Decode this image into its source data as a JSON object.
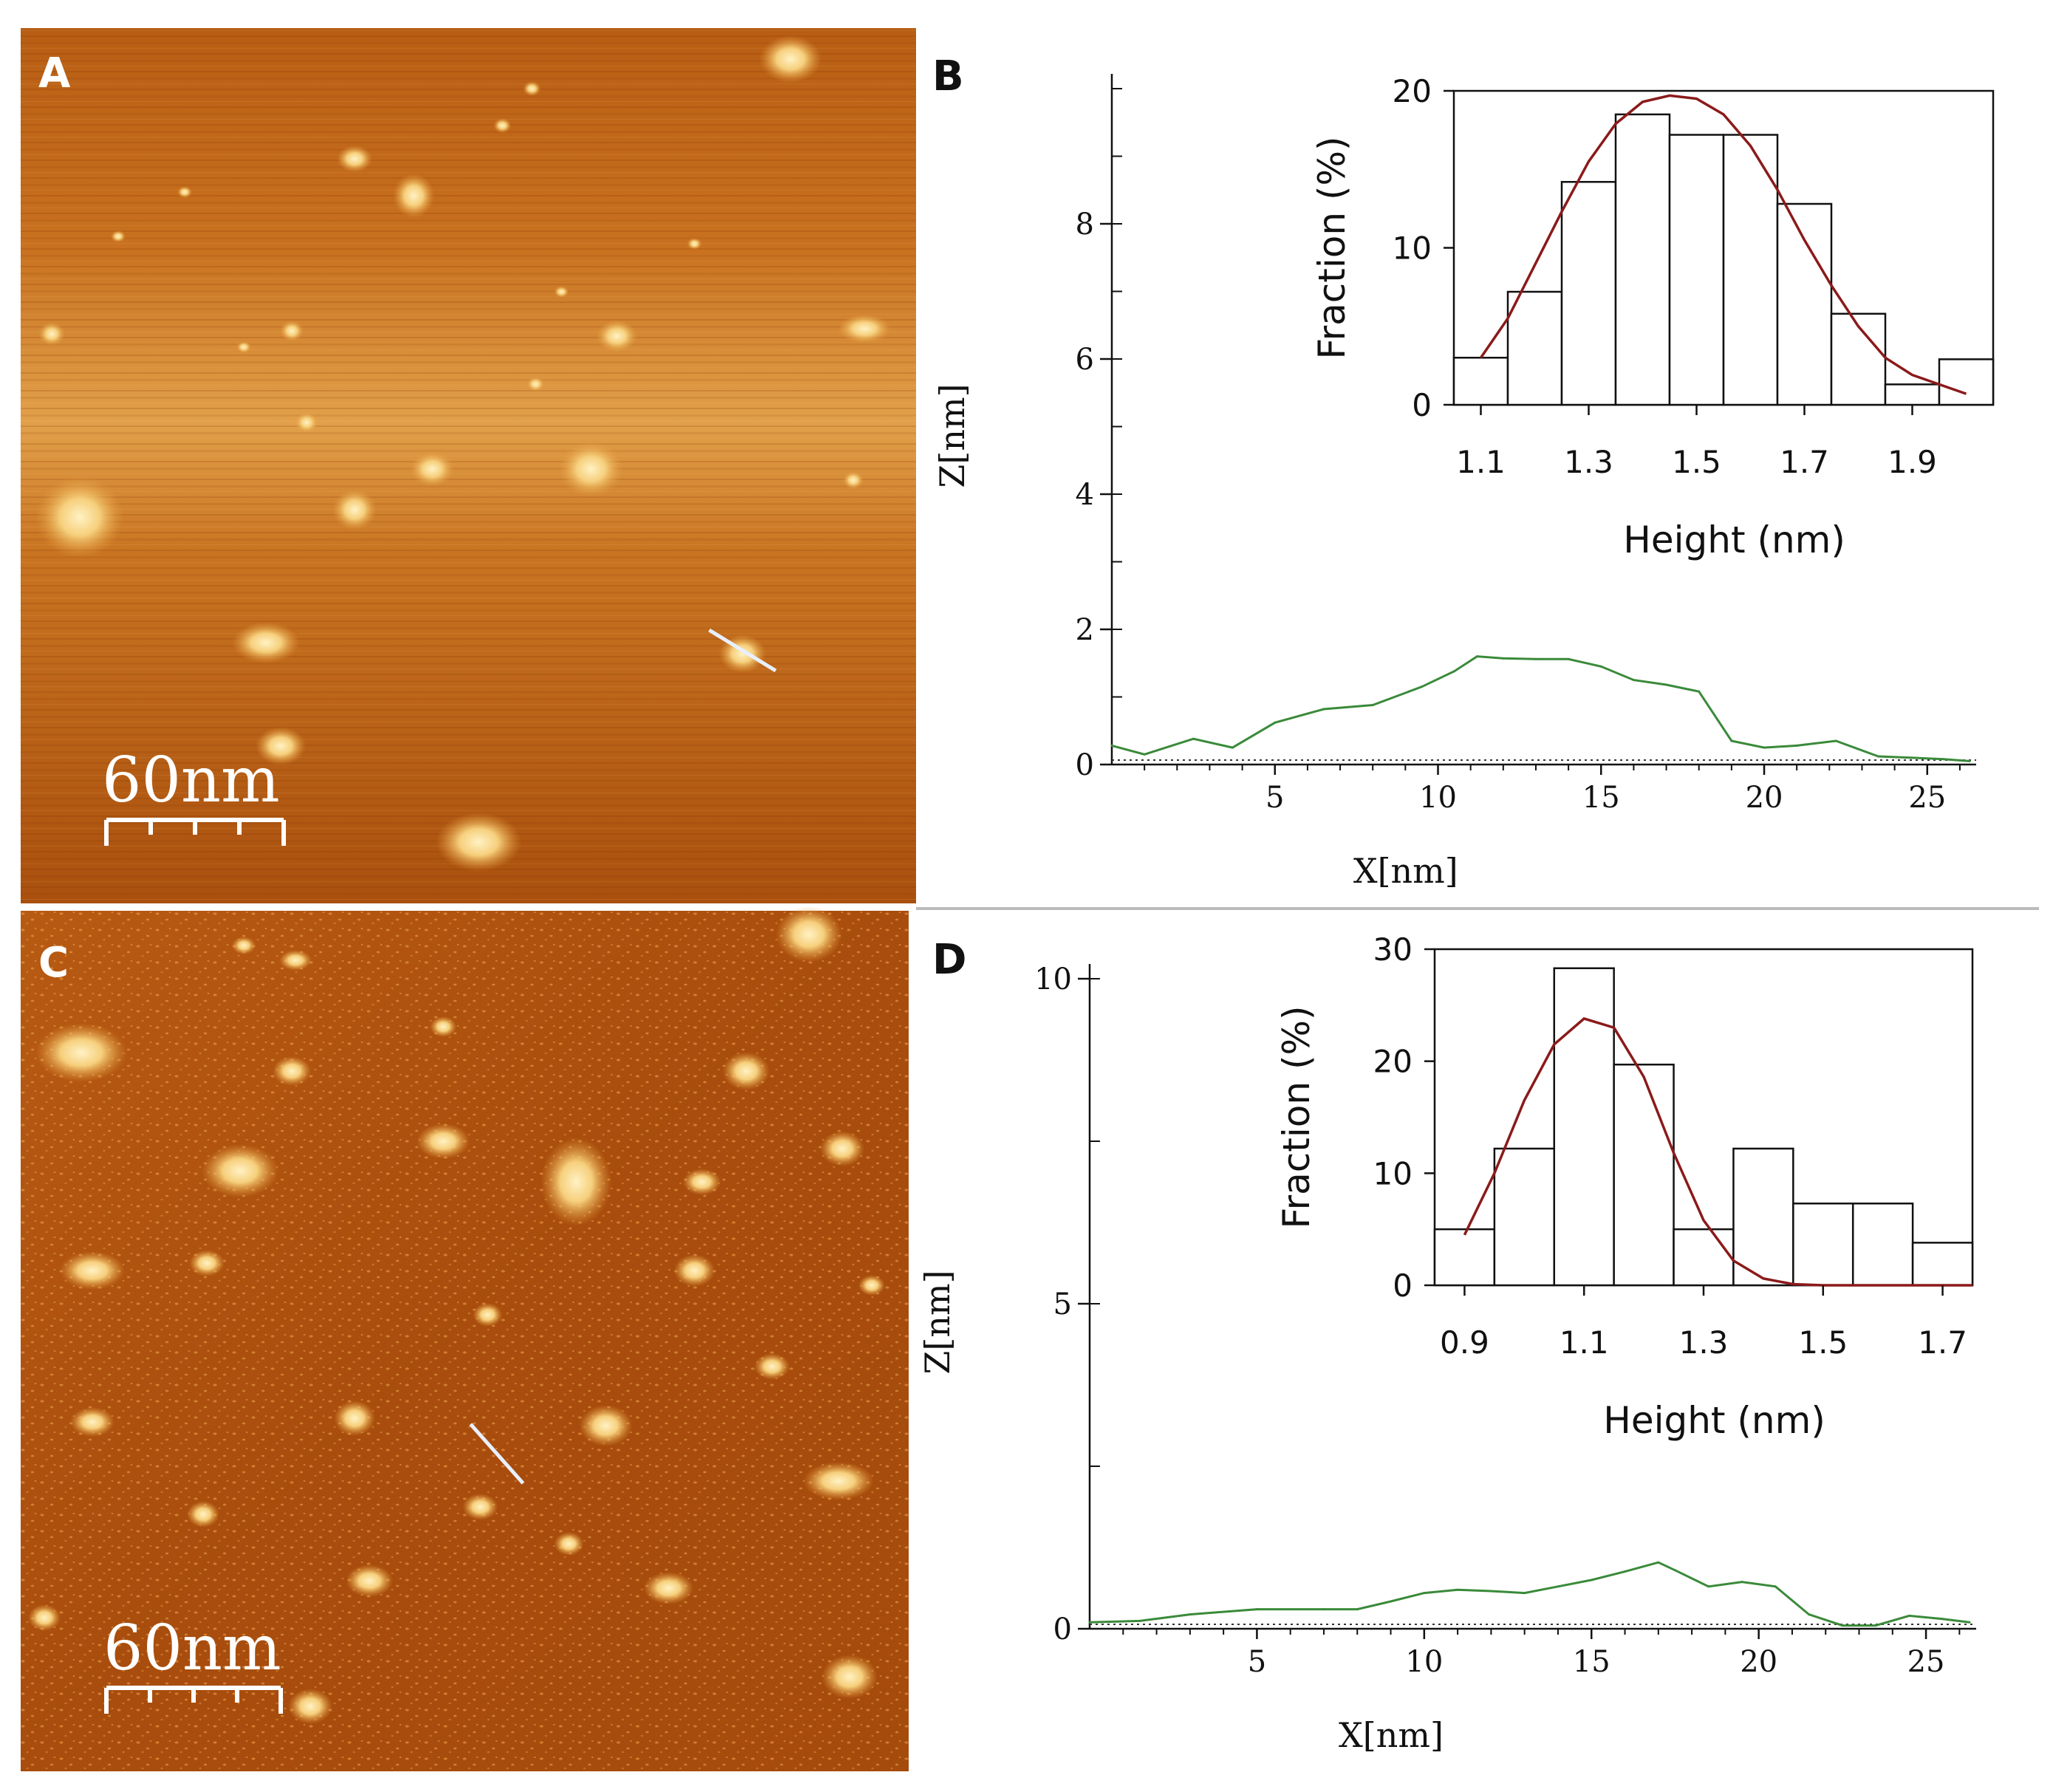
{
  "figure": {
    "panels": [
      {
        "label": "A",
        "type": "afm-image",
        "scale_bar": "60nm",
        "scale_bar_ticks": 4
      },
      {
        "label": "B"
      },
      {
        "label": "C",
        "type": "afm-image",
        "scale_bar": "60nm",
        "scale_bar_ticks": 4
      },
      {
        "label": "D"
      }
    ],
    "colors": {
      "afm_dark": "#7a2a00",
      "afm_mid": "#b8560f",
      "afm_bright": "#ffe9a8",
      "profile_line": "#3a8a3a",
      "fit_curve": "#8b1a1a",
      "divider": "#bbbbbb",
      "trace_marker": "#e8f0ff"
    }
  },
  "chart_data": [
    {
      "panel": "B",
      "type": "line",
      "title": "",
      "xlabel": "X[nm]",
      "ylabel": "Z[nm]",
      "xlim": [
        0,
        26.5
      ],
      "ylim": [
        0,
        10
      ],
      "xticks": [
        5,
        10,
        15,
        20,
        25
      ],
      "yticks": [
        0,
        2,
        4,
        6,
        8
      ],
      "minor_yticks": true,
      "baseline_dotted": true,
      "series": [
        {
          "name": "height profile",
          "x": [
            0,
            1,
            2.5,
            3.7,
            5,
            6.5,
            8,
            9.5,
            10.5,
            11.2,
            12,
            13,
            14,
            15,
            16,
            17,
            18,
            19,
            20,
            21,
            22.2,
            23.5,
            24.5,
            25.5,
            26.3
          ],
          "y": [
            0.28,
            0.15,
            0.38,
            0.25,
            0.62,
            0.82,
            0.88,
            1.15,
            1.38,
            1.6,
            1.57,
            1.56,
            1.56,
            1.45,
            1.25,
            1.18,
            1.08,
            0.35,
            0.25,
            0.28,
            0.35,
            0.12,
            0.1,
            0.08,
            0.05
          ]
        }
      ],
      "inset": {
        "type": "bar",
        "xlabel": "Height (nm)",
        "ylabel": "Fraction (%)",
        "xlim": [
          1.05,
          2.05
        ],
        "ylim": [
          0,
          20
        ],
        "xticks": [
          1.1,
          1.3,
          1.5,
          1.7,
          1.9
        ],
        "yticks": [
          0,
          10,
          20
        ],
        "bin_edges": [
          1.05,
          1.15,
          1.25,
          1.35,
          1.45,
          1.55,
          1.65,
          1.75,
          1.85,
          1.95,
          2.05
        ],
        "values": [
          3.0,
          7.2,
          14.2,
          18.5,
          17.2,
          17.2,
          12.8,
          5.8,
          1.3,
          2.9
        ],
        "fit": {
          "name": "Gaussian fit",
          "x": [
            1.1,
            1.15,
            1.2,
            1.25,
            1.3,
            1.35,
            1.4,
            1.45,
            1.5,
            1.55,
            1.6,
            1.65,
            1.7,
            1.75,
            1.8,
            1.85,
            1.9,
            1.95,
            2.0
          ],
          "y": [
            3.0,
            5.5,
            8.9,
            12.3,
            15.5,
            17.9,
            19.3,
            19.7,
            19.5,
            18.5,
            16.5,
            13.7,
            10.5,
            7.6,
            5.0,
            3.0,
            1.9,
            1.3,
            0.7
          ]
        }
      }
    },
    {
      "panel": "D",
      "type": "line",
      "title": "",
      "xlabel": "X[nm]",
      "ylabel": "Z[nm]",
      "xlim": [
        0,
        26.5
      ],
      "ylim": [
        0,
        10
      ],
      "xticks": [
        5,
        10,
        15,
        20,
        25
      ],
      "yticks": [
        0,
        5,
        10
      ],
      "minor_yticks": true,
      "baseline_dotted": true,
      "series": [
        {
          "name": "height profile",
          "x": [
            0,
            1.5,
            3,
            5,
            7,
            8,
            9,
            10,
            11,
            12,
            13,
            14,
            15,
            16,
            17,
            17.5,
            18.5,
            19.5,
            20.5,
            21.5,
            22.5,
            23.5,
            24.5,
            25.5,
            26.3
          ],
          "y": [
            0.1,
            0.12,
            0.22,
            0.3,
            0.3,
            0.3,
            0.42,
            0.55,
            0.6,
            0.58,
            0.55,
            0.65,
            0.75,
            0.88,
            1.02,
            0.9,
            0.65,
            0.72,
            0.65,
            0.22,
            0.05,
            0.05,
            0.2,
            0.15,
            0.1
          ]
        }
      ],
      "inset": {
        "type": "bar",
        "xlabel": "Height (nm)",
        "ylabel": "Fraction (%)",
        "xlim": [
          0.85,
          1.75
        ],
        "ylim": [
          0,
          30
        ],
        "xticks": [
          0.9,
          1.1,
          1.3,
          1.5,
          1.7
        ],
        "yticks": [
          0,
          10,
          20,
          30
        ],
        "bin_edges": [
          0.85,
          0.95,
          1.05,
          1.15,
          1.25,
          1.35,
          1.45,
          1.55,
          1.65,
          1.75
        ],
        "values": [
          5.0,
          12.2,
          28.3,
          19.7,
          5.0,
          12.2,
          7.3,
          7.3,
          3.8
        ],
        "fit": {
          "name": "Gaussian fit",
          "x": [
            0.9,
            0.95,
            1.0,
            1.05,
            1.1,
            1.15,
            1.2,
            1.25,
            1.3,
            1.35,
            1.4,
            1.45,
            1.5,
            1.55,
            1.6,
            1.65,
            1.7,
            1.75
          ],
          "y": [
            4.5,
            10.0,
            16.5,
            21.5,
            23.8,
            23.0,
            18.6,
            11.8,
            5.8,
            2.2,
            0.6,
            0.1,
            0.0,
            0.0,
            0.0,
            0.0,
            0.0,
            0.0
          ]
        }
      }
    }
  ]
}
